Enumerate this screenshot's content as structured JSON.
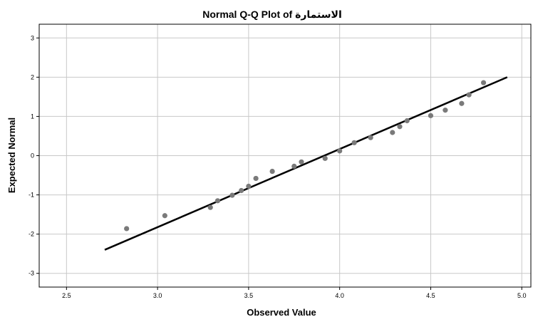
{
  "chart_data": {
    "type": "scatter",
    "title": "Normal Q-Q Plot of الاستمارة",
    "xlabel": "Observed Value",
    "ylabel": "Expected Normal",
    "xlim": [
      2.35,
      5.05
    ],
    "ylim": [
      -3.35,
      3.35
    ],
    "x_ticks": [
      2.5,
      3.0,
      3.5,
      4.0,
      4.5,
      5.0
    ],
    "y_ticks": [
      -3,
      -2,
      -1,
      0,
      1,
      2,
      3
    ],
    "x_tick_labels": [
      "2.5",
      "3.0",
      "3.5",
      "4.0",
      "4.5",
      "5.0"
    ],
    "y_tick_labels": [
      "-3",
      "-2",
      "-1",
      "0",
      "1",
      "2",
      "3"
    ],
    "grid": true,
    "points": [
      {
        "x": 2.83,
        "y": -1.86
      },
      {
        "x": 3.04,
        "y": -1.53
      },
      {
        "x": 3.29,
        "y": -1.32
      },
      {
        "x": 3.33,
        "y": -1.15
      },
      {
        "x": 3.41,
        "y": -1.01
      },
      {
        "x": 3.46,
        "y": -0.89
      },
      {
        "x": 3.5,
        "y": -0.78
      },
      {
        "x": 3.54,
        "y": -0.58
      },
      {
        "x": 3.63,
        "y": -0.4
      },
      {
        "x": 3.75,
        "y": -0.27
      },
      {
        "x": 3.79,
        "y": -0.16
      },
      {
        "x": 3.92,
        "y": -0.07
      },
      {
        "x": 4.0,
        "y": 0.12
      },
      {
        "x": 4.08,
        "y": 0.33
      },
      {
        "x": 4.17,
        "y": 0.46
      },
      {
        "x": 4.29,
        "y": 0.59
      },
      {
        "x": 4.33,
        "y": 0.74
      },
      {
        "x": 4.37,
        "y": 0.89
      },
      {
        "x": 4.5,
        "y": 1.02
      },
      {
        "x": 4.58,
        "y": 1.16
      },
      {
        "x": 4.67,
        "y": 1.33
      },
      {
        "x": 4.71,
        "y": 1.55
      },
      {
        "x": 4.79,
        "y": 1.86
      }
    ],
    "reference_line": {
      "x1": 2.71,
      "y1": -2.4,
      "x2": 4.92,
      "y2": 2.0
    },
    "colors": {
      "points": "#7a7a7a",
      "line": "#000000",
      "grid": "#c8c8c8"
    }
  }
}
